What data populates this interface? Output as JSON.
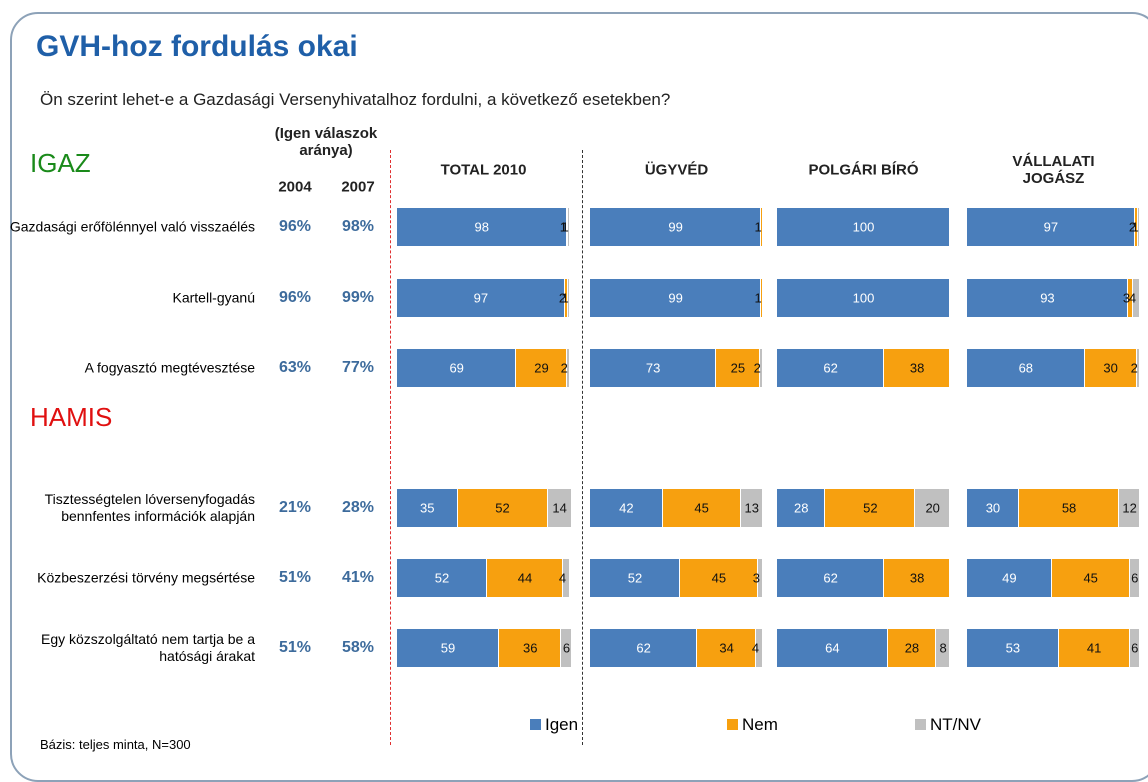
{
  "header": {
    "title": "GVH-hoz fordulás okai",
    "subtitle": "Ön szerint lehet-e a Gazdasági Versenyhivatalhoz fordulni, a következő esetekben?"
  },
  "sections": [
    "IGAZ",
    "HAMIS"
  ],
  "row_labels": [
    "Gazdasági erőfölénnyel való visszaélés",
    "Kartell-gyanú",
    "A fogyasztó megtévesztése",
    "Tisztességtelen lóversenyfogadás bennfentes információk alapján",
    "Közbeszerzési törvény megsértése",
    "Egy közszolgáltató nem tartja be a hatósági árakat"
  ],
  "history": {
    "title": "(Igen válaszok aránya)",
    "columns": [
      "2004",
      "2007"
    ],
    "rows": [
      [
        "96%",
        "98%"
      ],
      [
        "96%",
        "99%"
      ],
      [
        "63%",
        "77%"
      ],
      [
        "21%",
        "28%"
      ],
      [
        "51%",
        "41%"
      ],
      [
        "51%",
        "58%"
      ]
    ]
  },
  "legend": [
    "Igen",
    "Nem",
    "NT/NV"
  ],
  "footnote": "Bázis: teljes minta, N=300",
  "chart_data": [
    {
      "type": "stacked_bar",
      "title": "TOTAL 2010",
      "xlim": [
        0,
        100
      ],
      "series": [
        {
          "name": "Igen",
          "color": "#4a7ebb",
          "values": [
            98,
            97,
            69,
            35,
            52,
            59
          ]
        },
        {
          "name": "Nem",
          "color": "#f7a00f",
          "values": [
            1,
            2,
            29,
            52,
            44,
            36
          ]
        },
        {
          "name": "NT/NV",
          "color": "#c0c0c0",
          "values": [
            1,
            1,
            2,
            14,
            4,
            6
          ]
        }
      ]
    },
    {
      "type": "stacked_bar",
      "title": "ÜGYVÉD",
      "xlim": [
        0,
        100
      ],
      "series": [
        {
          "name": "Igen",
          "color": "#4a7ebb",
          "values": [
            99,
            99,
            73,
            42,
            52,
            62
          ]
        },
        {
          "name": "Nem",
          "color": "#f7a00f",
          "values": [
            1,
            1,
            25,
            45,
            45,
            34
          ]
        },
        {
          "name": "NT/NV",
          "color": "#c0c0c0",
          "values": [
            0,
            0,
            2,
            13,
            3,
            4
          ]
        }
      ]
    },
    {
      "type": "stacked_bar",
      "title": "POLGÁRI BÍRÓ",
      "xlim": [
        0,
        100
      ],
      "series": [
        {
          "name": "Igen",
          "color": "#4a7ebb",
          "values": [
            100,
            100,
            62,
            28,
            62,
            64
          ]
        },
        {
          "name": "Nem",
          "color": "#f7a00f",
          "values": [
            0,
            0,
            38,
            52,
            38,
            28
          ]
        },
        {
          "name": "NT/NV",
          "color": "#c0c0c0",
          "values": [
            0,
            0,
            0,
            20,
            0,
            8
          ]
        }
      ]
    },
    {
      "type": "stacked_bar",
      "title": "VÁLLALATI JOGÁSZ",
      "xlim": [
        0,
        100
      ],
      "series": [
        {
          "name": "Igen",
          "color": "#4a7ebb",
          "values": [
            97,
            93,
            68,
            30,
            49,
            53
          ]
        },
        {
          "name": "Nem",
          "color": "#f7a00f",
          "values": [
            2,
            3,
            30,
            58,
            45,
            41
          ]
        },
        {
          "name": "NT/NV",
          "color": "#c0c0c0",
          "values": [
            1,
            4,
            2,
            12,
            6,
            6
          ]
        }
      ]
    }
  ]
}
